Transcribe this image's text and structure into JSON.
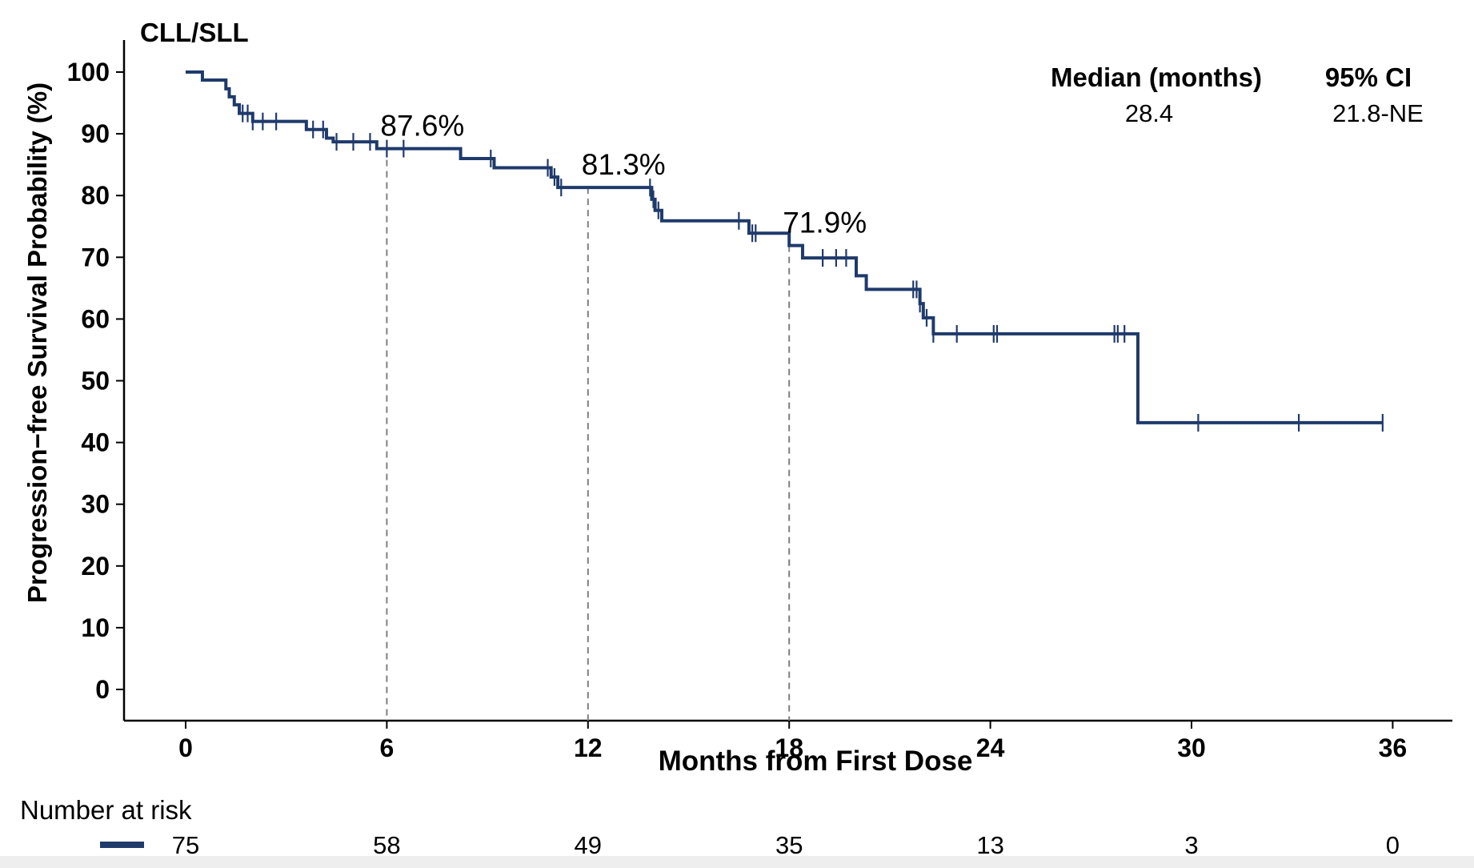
{
  "colors": {
    "curve": "#1f3a6b",
    "axis": "#000000",
    "reference_line": "#7f7f7f"
  },
  "chart_data": {
    "type": "line",
    "subtype": "kaplan-meier-step",
    "panel_label": "CLL/SLL",
    "xlabel": "Months from First Dose",
    "ylabel": "Progression−free Survival Probability (%)",
    "xlim": [
      -1.8,
      47.1
    ],
    "ylim": [
      -5,
      105
    ],
    "xticks": [
      0,
      6,
      12,
      18,
      24,
      30,
      36
    ],
    "yticks": [
      0,
      10,
      20,
      30,
      40,
      50,
      60,
      70,
      80,
      90,
      100
    ],
    "grid": false,
    "series": [
      {
        "steps": [
          [
            0,
            100
          ],
          [
            0.5,
            98.7
          ],
          [
            1.2,
            97.3
          ],
          [
            1.3,
            96.0
          ],
          [
            1.45,
            94.7
          ],
          [
            1.6,
            93.3
          ],
          [
            2.0,
            92.0
          ],
          [
            3.6,
            90.7
          ],
          [
            4.2,
            89.3
          ],
          [
            4.4,
            88.7
          ],
          [
            5.7,
            87.6
          ],
          [
            8.2,
            86.0
          ],
          [
            9.2,
            84.5
          ],
          [
            10.9,
            83.0
          ],
          [
            11.1,
            81.3
          ],
          [
            13.9,
            79.4
          ],
          [
            14.0,
            77.6
          ],
          [
            14.2,
            75.9
          ],
          [
            16.8,
            73.9
          ],
          [
            18.0,
            71.9
          ],
          [
            18.4,
            69.9
          ],
          [
            20.0,
            67.0
          ],
          [
            20.3,
            64.8
          ],
          [
            21.9,
            62.5
          ],
          [
            22.0,
            60.2
          ],
          [
            22.3,
            57.6
          ],
          [
            28.4,
            43.2
          ],
          [
            35.7,
            43.2
          ]
        ],
        "censor_x": [
          1.7,
          1.85,
          2.0,
          2.3,
          2.7,
          3.8,
          4.1,
          4.5,
          5.0,
          5.5,
          6.0,
          6.5,
          9.1,
          10.8,
          11.0,
          11.2,
          13.85,
          13.95,
          14.1,
          16.5,
          16.9,
          17.0,
          19.0,
          19.4,
          19.7,
          21.7,
          21.8,
          21.9,
          22.1,
          22.3,
          23.0,
          24.1,
          24.2,
          27.7,
          27.8,
          28.0,
          30.2,
          33.2,
          35.7
        ]
      }
    ],
    "reference_lines": [
      {
        "x": 6,
        "y": 87.6,
        "label": "87.6%"
      },
      {
        "x": 12,
        "y": 81.3,
        "label": "81.3%"
      },
      {
        "x": 18,
        "y": 71.9,
        "label": "71.9%"
      }
    ],
    "summary": {
      "median_header": "Median (months)",
      "ci_header": "95% CI",
      "median_value": "28.4",
      "ci_value": "21.8-NE"
    },
    "risk_table": {
      "title": "Number at risk",
      "times": [
        0,
        6,
        12,
        18,
        24,
        30,
        36
      ],
      "values": [
        "75",
        "58",
        "49",
        "35",
        "13",
        "3",
        "0"
      ]
    }
  }
}
